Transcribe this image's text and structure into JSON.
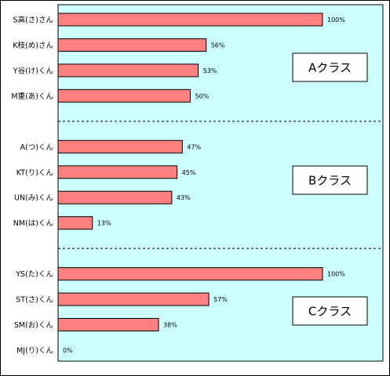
{
  "chart_data": {
    "type": "bar",
    "orientation": "horizontal",
    "xlim": [
      0,
      100
    ],
    "colors": {
      "bar": "#ff8080",
      "plot_background": "#ccffff",
      "separator": "#000000"
    },
    "grid": false,
    "categories": [
      "S高(さ)さん",
      "K枝(め)さん",
      "Y谷(け)くん",
      "M重(あ)くん",
      "A(つ)くん",
      "KT(り)くん",
      "UN(み)くん",
      "NM(は)くん",
      "YS(た)くん",
      "ST(さ)くん",
      "SM(お)くん",
      "MJ(り)くん"
    ],
    "values": [
      100,
      56,
      53,
      50,
      47,
      45,
      43,
      13,
      100,
      57,
      38,
      0
    ],
    "value_labels": [
      "100%",
      "56%",
      "53%",
      "50%",
      "47%",
      "45%",
      "43%",
      "13%",
      "100%",
      "57%",
      "38%",
      "0%"
    ],
    "groups": [
      {
        "name": "Aクラス",
        "start": 0,
        "count": 4
      },
      {
        "name": "Bクラス",
        "start": 4,
        "count": 4
      },
      {
        "name": "Cクラス",
        "start": 8,
        "count": 4
      }
    ]
  }
}
